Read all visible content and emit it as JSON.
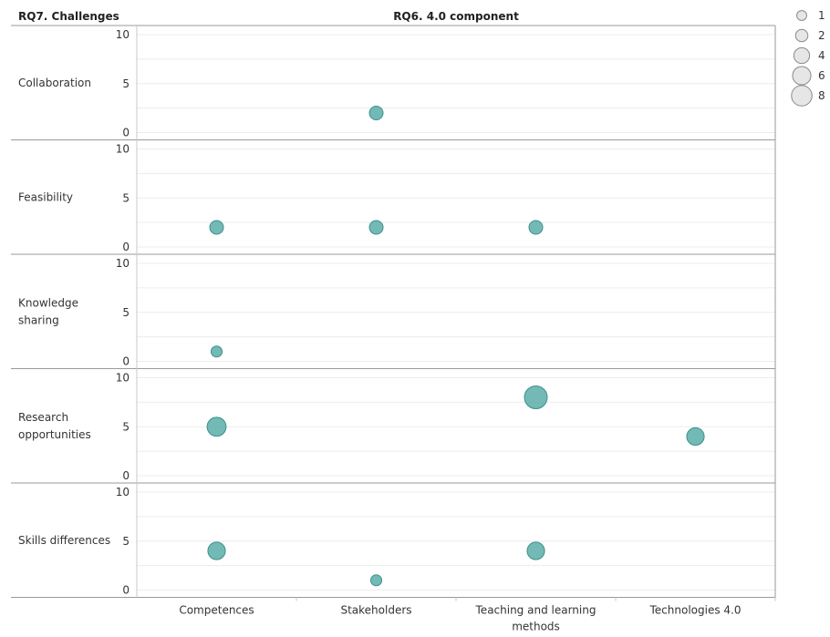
{
  "chart_data": {
    "type": "scatter",
    "title": "RQ6. 4.0 component",
    "row_header": "RQ7. Challenges",
    "categories": [
      "Competences",
      "Stakeholders",
      "Teaching and learning methods",
      "Technologies 4.0"
    ],
    "category_label_lines": [
      [
        "Competences"
      ],
      [
        "Stakeholders"
      ],
      [
        "Teaching and learning",
        "methods"
      ],
      [
        "Technologies 4.0"
      ]
    ],
    "ylim": [
      0,
      10
    ],
    "yticks": [
      0,
      5,
      10
    ],
    "grid": true,
    "point_color": "#5aada8",
    "rows": [
      {
        "label": "Collaboration",
        "label_lines": [
          "Collaboration"
        ],
        "points": [
          {
            "category": "Stakeholders",
            "y": 2,
            "size": 2
          }
        ]
      },
      {
        "label": "Feasibility",
        "label_lines": [
          "Feasibility"
        ],
        "points": [
          {
            "category": "Competences",
            "y": 2,
            "size": 2
          },
          {
            "category": "Stakeholders",
            "y": 2,
            "size": 2
          },
          {
            "category": "Teaching and learning methods",
            "y": 2,
            "size": 2
          }
        ]
      },
      {
        "label": "Knowledge sharing",
        "label_lines": [
          "Knowledge",
          "sharing"
        ],
        "points": [
          {
            "category": "Competences",
            "y": 1,
            "size": 1
          }
        ]
      },
      {
        "label": "Research opportunities",
        "label_lines": [
          "Research",
          "opportunities"
        ],
        "points": [
          {
            "category": "Competences",
            "y": 5,
            "size": 5
          },
          {
            "category": "Teaching and learning methods",
            "y": 8,
            "size": 8
          },
          {
            "category": "Technologies 4.0",
            "y": 4,
            "size": 4
          }
        ]
      },
      {
        "label": "Skills differences",
        "label_lines": [
          "Skills differences"
        ],
        "points": [
          {
            "category": "Competences",
            "y": 4,
            "size": 4
          },
          {
            "category": "Stakeholders",
            "y": 1,
            "size": 1
          },
          {
            "category": "Teaching and learning methods",
            "y": 4,
            "size": 4
          }
        ]
      }
    ],
    "legend": {
      "position": "top-right",
      "entries": [
        {
          "label": "1",
          "size": 1
        },
        {
          "label": "2",
          "size": 2
        },
        {
          "label": "4",
          "size": 4
        },
        {
          "label": "6",
          "size": 6
        },
        {
          "label": "8",
          "size": 8
        }
      ]
    }
  }
}
